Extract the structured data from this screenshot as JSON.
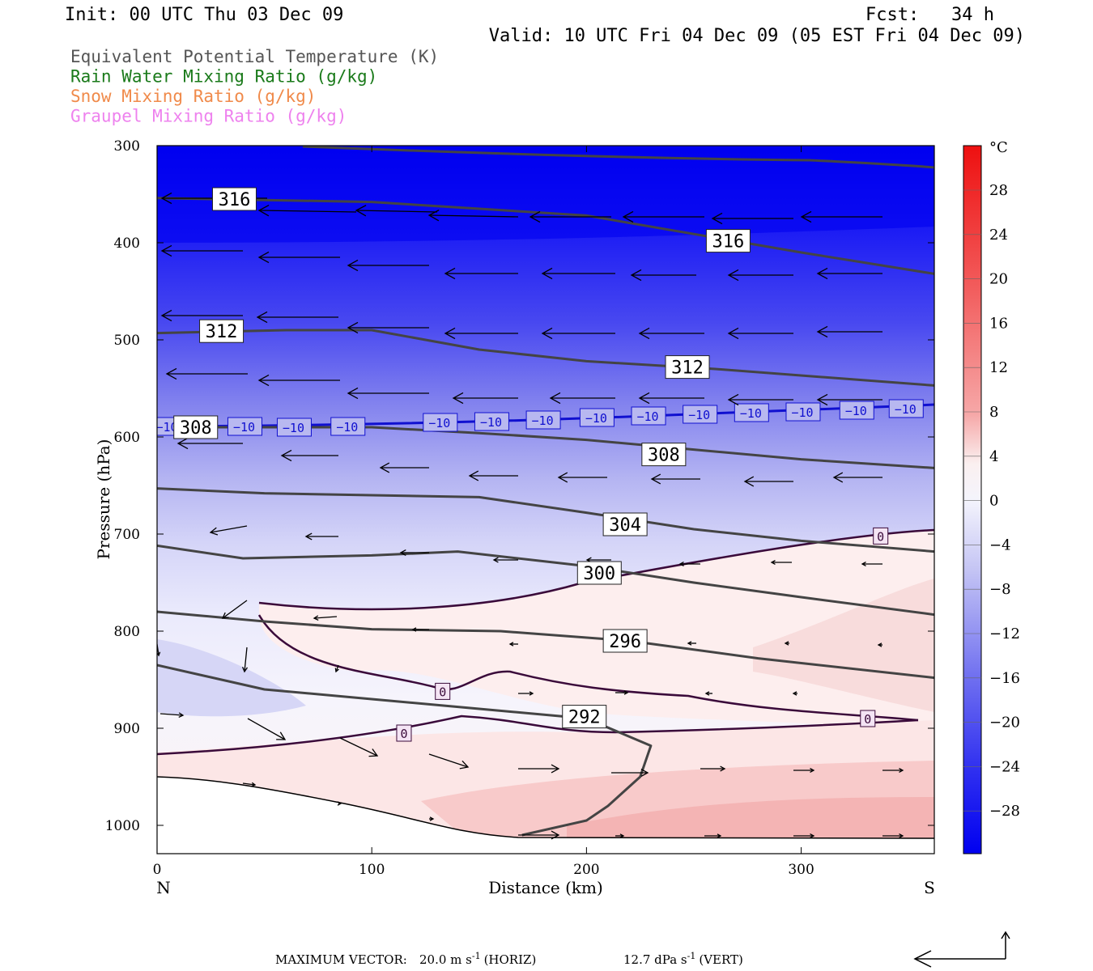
{
  "header": {
    "init": "Init: 00 UTC Thu 03 Dec 09",
    "fcst": "Fcst:   34 h",
    "valid": "Valid: 10 UTC Fri 04 Dec 09 (05 EST Fri 04 Dec 09)"
  },
  "legend": [
    {
      "label": "Equivalent Potential Temperature (K)",
      "color": "#555555"
    },
    {
      "label": "Rain Water Mixing Ratio (g/kg)",
      "color": "#1a7a1a"
    },
    {
      "label": "Snow Mixing Ratio (g/kg)",
      "color": "#f08a4a"
    },
    {
      "label": "Graupel Mixing Ratio (g/kg)",
      "color": "#ee82ee"
    }
  ],
  "chart_data": {
    "type": "cross-section",
    "xlabel": "Distance (km)",
    "ylabel": "Pressure (hPa)",
    "xlim": [
      0,
      362
    ],
    "ylim": [
      1030,
      300
    ],
    "x_ticks": [
      "0",
      "100",
      "200",
      "300"
    ],
    "y_ticks": [
      "300",
      "400",
      "500",
      "600",
      "700",
      "800",
      "900",
      "1000"
    ],
    "x_end_labels": {
      "left": "N",
      "right": "S"
    },
    "colorbar": {
      "unit": "°C",
      "ticks": [
        "28",
        "24",
        "20",
        "16",
        "12",
        "8",
        "4",
        "0",
        "−4",
        "−8",
        "−12",
        "−16",
        "−20",
        "−24",
        "−28"
      ]
    },
    "theta_e_contours": [
      {
        "value": 316,
        "x": [
          0,
          100,
          200,
          300,
          362
        ],
        "p": [
          354,
          358,
          372,
          410,
          432
        ]
      },
      {
        "value": 312,
        "x": [
          0,
          60,
          100,
          150,
          200,
          260,
          320,
          362
        ],
        "p": [
          493,
          490,
          490,
          510,
          522,
          530,
          540,
          547
        ]
      },
      {
        "value": 308,
        "x": [
          0,
          100,
          150,
          200,
          250,
          300,
          362
        ],
        "p": [
          590,
          590,
          596,
          603,
          613,
          623,
          632
        ]
      },
      {
        "value": 304,
        "x": [
          0,
          50,
          100,
          150,
          200,
          250,
          300,
          362
        ],
        "p": [
          653,
          658,
          660,
          662,
          678,
          695,
          707,
          718
        ]
      },
      {
        "value": 300,
        "x": [
          0,
          40,
          100,
          140,
          200,
          250,
          300,
          362
        ],
        "p": [
          712,
          725,
          722,
          718,
          733,
          750,
          765,
          783
        ]
      },
      {
        "value": 296,
        "x": [
          0,
          50,
          100,
          160,
          220,
          280,
          362
        ],
        "p": [
          780,
          790,
          798,
          800,
          810,
          828,
          848
        ]
      },
      {
        "value": 292,
        "x": [
          0,
          50,
          100,
          150,
          200,
          230,
          225,
          210,
          200,
          170
        ],
        "p": [
          835,
          860,
          870,
          880,
          890,
          918,
          950,
          980,
          995,
          1010
        ]
      }
    ],
    "isotherms": [
      {
        "value": -10,
        "color": "#1010d0"
      },
      {
        "value": 0,
        "color": "#3a0a3a"
      }
    ],
    "contour_labels": [
      {
        "text": "316",
        "x": 36,
        "p": 355
      },
      {
        "text": "316",
        "x": 266,
        "p": 398
      },
      {
        "text": "312",
        "x": 30,
        "p": 491
      },
      {
        "text": "312",
        "x": 247,
        "p": 528
      },
      {
        "text": "308",
        "x": 18,
        "p": 590
      },
      {
        "text": "308",
        "x": 236,
        "p": 618
      },
      {
        "text": "304",
        "x": 218,
        "p": 690
      },
      {
        "text": "300",
        "x": 206,
        "p": 740
      },
      {
        "text": "296",
        "x": 218,
        "p": 810
      },
      {
        "text": "292",
        "x": 199,
        "p": 888
      },
      {
        "text": "0",
        "x": 337,
        "p": 702
      },
      {
        "text": "0",
        "x": 133,
        "p": 862
      },
      {
        "text": "0",
        "x": 331,
        "p": 890
      },
      {
        "text": "0",
        "x": 115,
        "p": 905
      }
    ],
    "temperature_shading_levels": [
      "0",
      "2",
      "4",
      "6",
      "8",
      "10"
    ]
  },
  "footer": {
    "max_vector_label": "MAXIMUM VECTOR:",
    "horiz_value": "20.0 m s",
    "horiz_exp": "-1",
    "horiz_tag": "(HORIZ)",
    "vert_value": "12.7 dPa s",
    "vert_exp": "-1",
    "vert_tag": "(VERT)"
  }
}
